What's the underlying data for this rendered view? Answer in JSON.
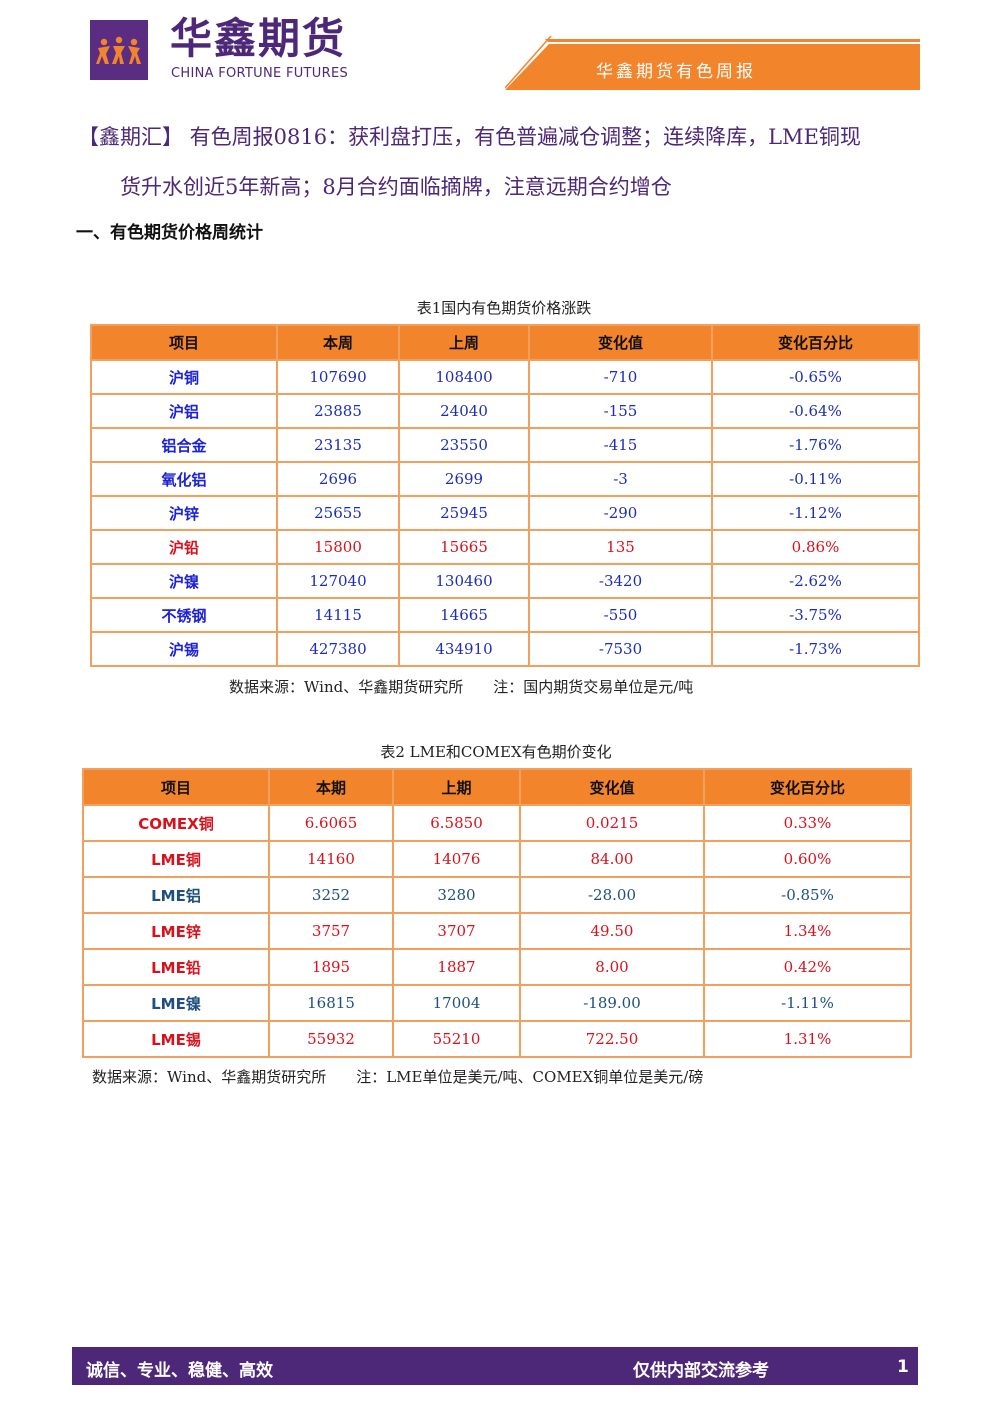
{
  "header": {
    "brand_cn": "华鑫期货",
    "brand_en": "CHINA FORTUNE FUTURES",
    "report_name": "华鑫期货有色周报",
    "logo_icon": "dancing-figures-logo",
    "colors": {
      "purple": "#4d2778",
      "orange": "#f2842c"
    }
  },
  "title": {
    "line1": "【鑫期汇】 有色周报0816：获利盘打压，有色普遍减仓调整；连续降库，LME铜现",
    "line2": "货升水创近5年新高；8月合约面临摘牌，注意远期合约增仓"
  },
  "section1": "一、有色期货价格周统计",
  "table1": {
    "caption": "表1国内有色期货价格涨跌",
    "headers": [
      "项目",
      "本周",
      "上周",
      "变化值",
      "变化百分比"
    ],
    "rows": [
      {
        "name": "沪铜",
        "cur": "107690",
        "prev": "108400",
        "chg": "-710",
        "pct": "-0.65%",
        "color": "blue"
      },
      {
        "name": "沪铝",
        "cur": "23885",
        "prev": "24040",
        "chg": "-155",
        "pct": "-0.64%",
        "color": "blue"
      },
      {
        "name": "铝合金",
        "cur": "23135",
        "prev": "23550",
        "chg": "-415",
        "pct": "-1.76%",
        "color": "blue"
      },
      {
        "name": "氧化铝",
        "cur": "2696",
        "prev": "2699",
        "chg": "-3",
        "pct": "-0.11%",
        "color": "blue"
      },
      {
        "name": "沪锌",
        "cur": "25655",
        "prev": "25945",
        "chg": "-290",
        "pct": "-1.12%",
        "color": "blue"
      },
      {
        "name": "沪铅",
        "cur": "15800",
        "prev": "15665",
        "chg": "135",
        "pct": "0.86%",
        "color": "red"
      },
      {
        "name": "沪镍",
        "cur": "127040",
        "prev": "130460",
        "chg": "-3420",
        "pct": "-2.62%",
        "color": "blue"
      },
      {
        "name": "不锈钢",
        "cur": "14115",
        "prev": "14665",
        "chg": "-550",
        "pct": "-3.75%",
        "color": "blue"
      },
      {
        "name": "沪锡",
        "cur": "427380",
        "prev": "434910",
        "chg": "-7530",
        "pct": "-1.73%",
        "color": "blue"
      }
    ],
    "note": "数据来源：Wind、华鑫期货研究所　　注：国内期货交易单位是元/吨"
  },
  "table2": {
    "caption": "表2 LME和COMEX有色期价变化",
    "headers": [
      "项目",
      "本期",
      "上期",
      "变化值",
      "变化百分比"
    ],
    "rows": [
      {
        "name": "COMEX铜",
        "cur": "6.6065",
        "prev": "6.5850",
        "chg": "0.0215",
        "pct": "0.33%",
        "color": "red"
      },
      {
        "name": "LME铜",
        "cur": "14160",
        "prev": "14076",
        "chg": "84.00",
        "pct": "0.60%",
        "color": "red"
      },
      {
        "name": "LME铝",
        "cur": "3252",
        "prev": "3280",
        "chg": "-28.00",
        "pct": "-0.85%",
        "color": "teal"
      },
      {
        "name": "LME锌",
        "cur": "3757",
        "prev": "3707",
        "chg": "49.50",
        "pct": "1.34%",
        "color": "red"
      },
      {
        "name": "LME铅",
        "cur": "1895",
        "prev": "1887",
        "chg": "8.00",
        "pct": "0.42%",
        "color": "red"
      },
      {
        "name": "LME镍",
        "cur": "16815",
        "prev": "17004",
        "chg": "-189.00",
        "pct": "-1.11%",
        "color": "teal"
      },
      {
        "name": "LME锡",
        "cur": "55932",
        "prev": "55210",
        "chg": "722.50",
        "pct": "1.31%",
        "color": "red"
      }
    ],
    "note": "数据来源：Wind、华鑫期货研究所　　注：LME单位是美元/吨、COMEX铜单位是美元/磅"
  },
  "footer": {
    "motto": "诚信、专业、稳健、高效",
    "disclaimer": "仅供内部交流参考",
    "page": "1"
  }
}
